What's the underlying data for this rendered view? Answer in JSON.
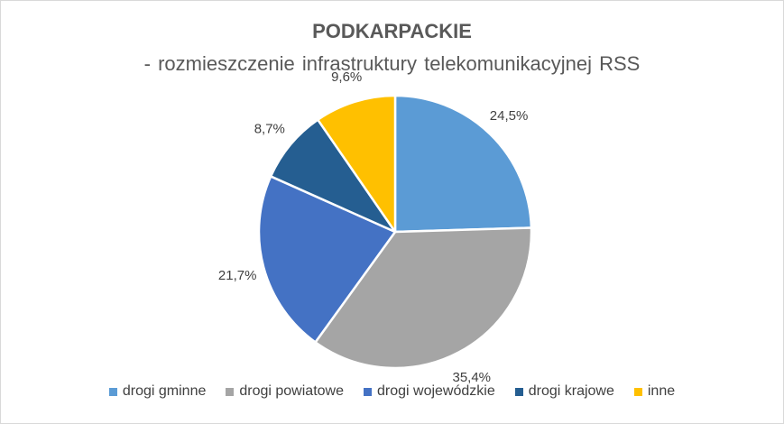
{
  "chart_data": {
    "type": "pie",
    "title": "PODKARPACKIE",
    "subtitle": "- rozmieszczenie  infrastruktury telekomunikacyjnej RSS",
    "categories": [
      "drogi gminne",
      "drogi powiatowe",
      "drogi wojewódzkie",
      "drogi krajowe",
      "inne"
    ],
    "values": [
      24.5,
      35.4,
      21.7,
      8.7,
      9.6
    ],
    "data_labels": [
      "24,5%",
      "35,4%",
      "21,7%",
      "8,7%",
      "9,6%"
    ],
    "colors": [
      "#5b9bd5",
      "#a5a5a5",
      "#4472c4",
      "#255e91",
      "#ffc000"
    ],
    "legend_position": "bottom",
    "start_angle": "12 o'clock, clockwise"
  }
}
